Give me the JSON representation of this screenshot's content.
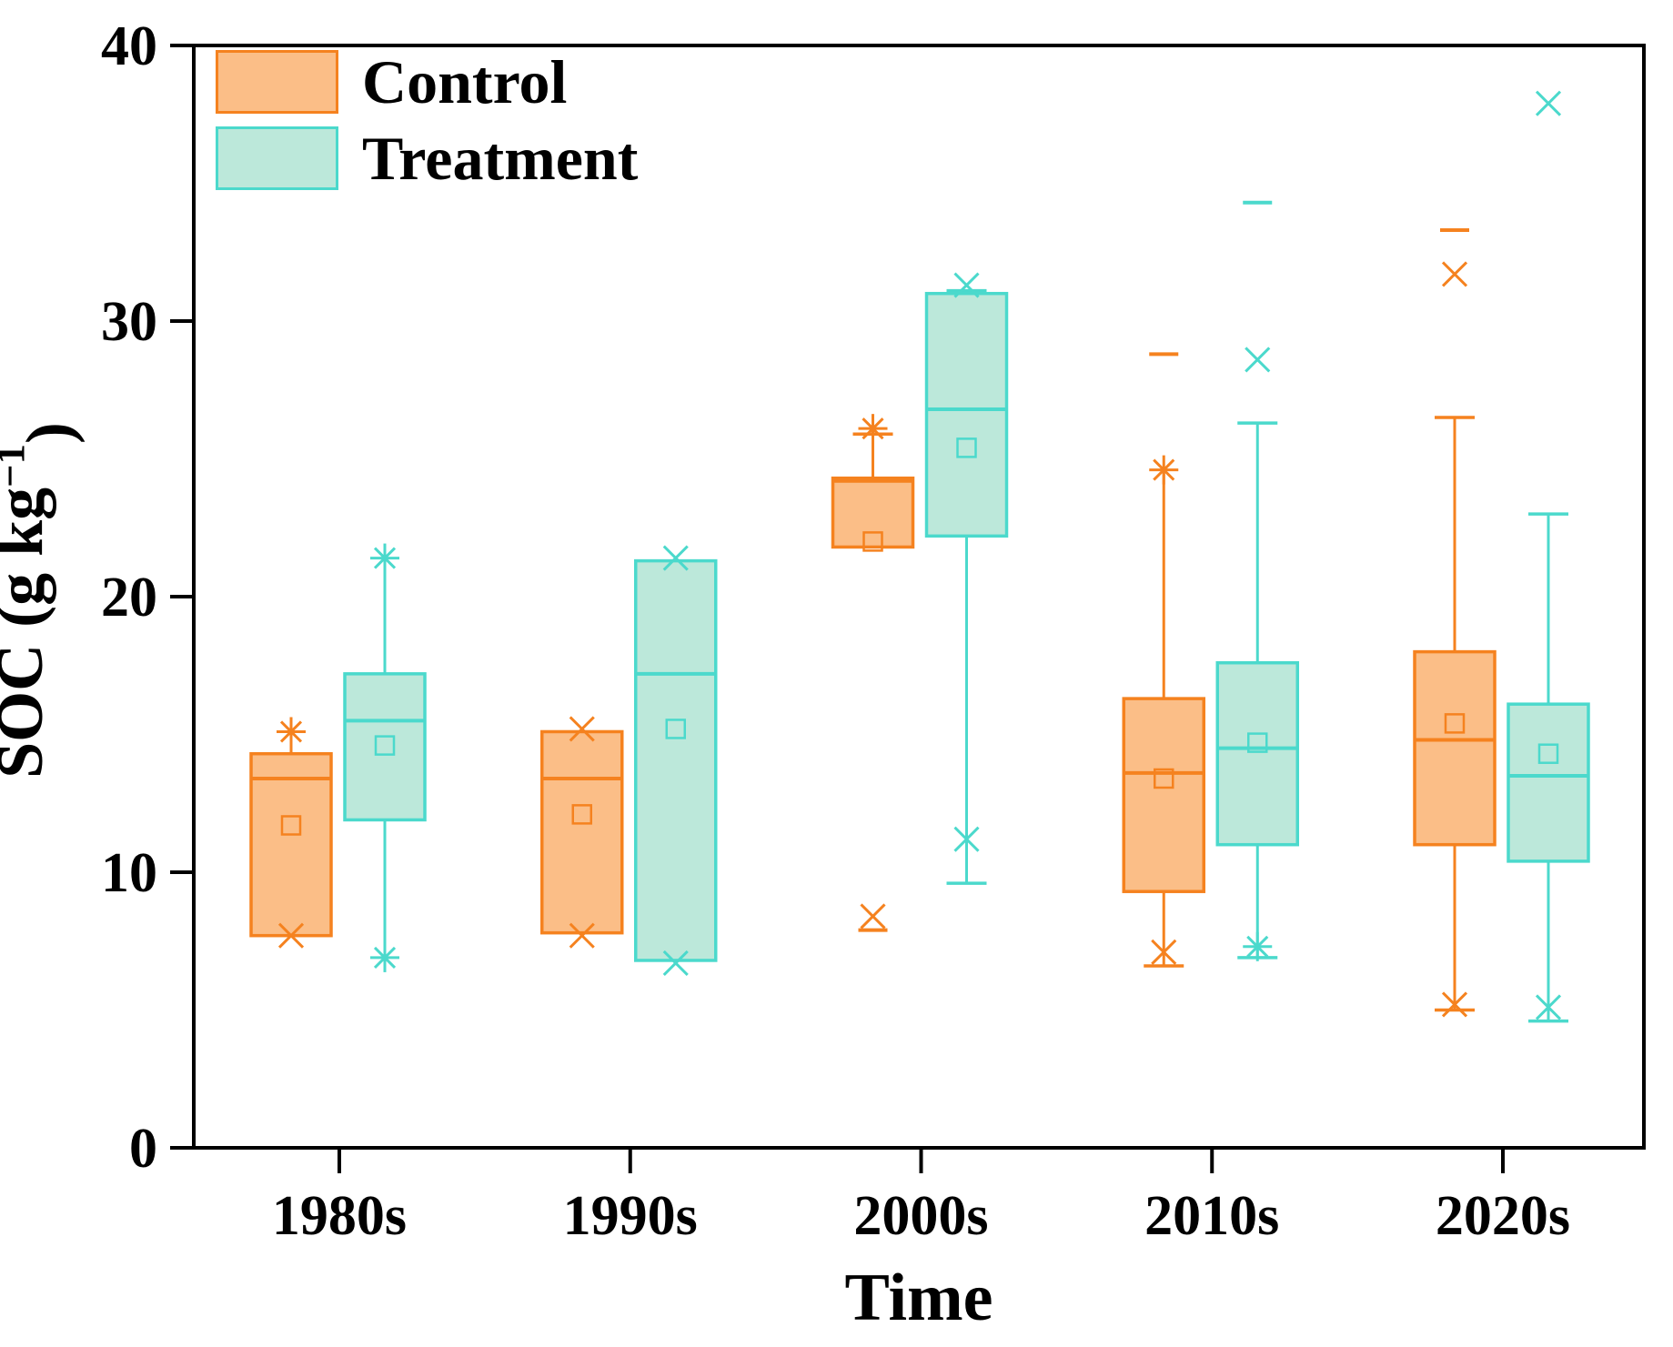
{
  "chart_data": {
    "type": "boxplot",
    "title": "",
    "xlabel": "Time",
    "ylabel": "SOC (g kg⁻¹)",
    "ylabel_parts": {
      "prefix": "SOC (g kg",
      "sup": "−1",
      "suffix": ")"
    },
    "ylim": [
      0,
      40
    ],
    "y_ticks": [
      0,
      10,
      20,
      30,
      40
    ],
    "categories": [
      "1980s",
      "1990s",
      "2000s",
      "2010s",
      "2020s"
    ],
    "legend": {
      "position": "top-left",
      "entries": [
        "Control",
        "Treatment"
      ]
    },
    "colors": {
      "control_line": "#F5821F",
      "control_fill": "#FBBE87",
      "treatment_line": "#4BD9CC",
      "treatment_fill": "#BCE8DA",
      "axis": "#000000",
      "background": "#FFFFFF"
    },
    "series": [
      {
        "name": "Control",
        "role": "control",
        "boxes": [
          {
            "category": "1980s",
            "q1": 7.7,
            "median": 13.4,
            "q3": 14.3,
            "mean": 11.7,
            "whisker_low": 7.7,
            "whisker_high": 15.0,
            "cap_low": false,
            "cap_high": false,
            "points": [
              {
                "shape": "star",
                "value": 15.1
              },
              {
                "shape": "x",
                "value": 7.7
              }
            ]
          },
          {
            "category": "1990s",
            "q1": 7.8,
            "median": 13.4,
            "q3": 15.1,
            "mean": 12.1,
            "whisker_low": 7.8,
            "whisker_high": 15.1,
            "cap_low": false,
            "cap_high": false,
            "points": [
              {
                "shape": "x",
                "value": 15.2
              },
              {
                "shape": "x",
                "value": 7.7
              }
            ]
          },
          {
            "category": "2000s",
            "q1": 21.8,
            "median": 24.2,
            "q3": 24.3,
            "mean": 22.0,
            "whisker_low": 21.8,
            "whisker_high": 25.9,
            "cap_low": false,
            "cap_high": true,
            "points": [
              {
                "shape": "star",
                "value": 26.1
              },
              {
                "shape": "x",
                "value": 8.4
              },
              {
                "shape": "dash",
                "value": 7.9
              }
            ]
          },
          {
            "category": "2010s",
            "q1": 9.3,
            "median": 13.6,
            "q3": 16.3,
            "mean": 13.4,
            "whisker_low": 6.6,
            "whisker_high": 24.5,
            "cap_low": true,
            "cap_high": false,
            "points": [
              {
                "shape": "star",
                "value": 24.6
              },
              {
                "shape": "x",
                "value": 7.1
              },
              {
                "shape": "dash",
                "value": 28.8
              }
            ]
          },
          {
            "category": "2020s",
            "q1": 11.0,
            "median": 14.8,
            "q3": 18.0,
            "mean": 15.4,
            "whisker_low": 5.0,
            "whisker_high": 26.5,
            "cap_low": true,
            "cap_high": true,
            "points": [
              {
                "shape": "x",
                "value": 5.2
              },
              {
                "shape": "x",
                "value": 31.7
              },
              {
                "shape": "dash",
                "value": 33.3
              }
            ]
          }
        ]
      },
      {
        "name": "Treatment",
        "role": "treatment",
        "boxes": [
          {
            "category": "1980s",
            "q1": 11.9,
            "median": 15.5,
            "q3": 17.2,
            "mean": 14.6,
            "whisker_low": 6.9,
            "whisker_high": 21.3,
            "cap_low": false,
            "cap_high": false,
            "points": [
              {
                "shape": "star",
                "value": 21.4
              },
              {
                "shape": "star",
                "value": 6.9
              }
            ]
          },
          {
            "category": "1990s",
            "q1": 6.8,
            "median": 17.2,
            "q3": 21.3,
            "mean": 15.2,
            "whisker_low": 6.8,
            "whisker_high": 21.3,
            "cap_low": false,
            "cap_high": false,
            "points": [
              {
                "shape": "x",
                "value": 21.4
              },
              {
                "shape": "x",
                "value": 6.7
              }
            ]
          },
          {
            "category": "2000s",
            "q1": 22.2,
            "median": 26.8,
            "q3": 31.0,
            "mean": 25.4,
            "whisker_low": 9.6,
            "whisker_high": 31.1,
            "cap_low": true,
            "cap_high": true,
            "points": [
              {
                "shape": "x",
                "value": 31.3
              },
              {
                "shape": "x",
                "value": 11.2
              }
            ]
          },
          {
            "category": "2010s",
            "q1": 11.0,
            "median": 14.5,
            "q3": 17.6,
            "mean": 14.7,
            "whisker_low": 6.9,
            "whisker_high": 26.3,
            "cap_low": true,
            "cap_high": true,
            "points": [
              {
                "shape": "x",
                "value": 28.6
              },
              {
                "shape": "dash",
                "value": 34.3
              },
              {
                "shape": "star",
                "value": 7.3
              }
            ]
          },
          {
            "category": "2020s",
            "q1": 10.4,
            "median": 13.5,
            "q3": 16.1,
            "mean": 14.3,
            "whisker_low": 4.6,
            "whisker_high": 23.0,
            "cap_low": true,
            "cap_high": true,
            "points": [
              {
                "shape": "x",
                "value": 37.9
              },
              {
                "shape": "x",
                "value": 5.1
              }
            ]
          }
        ]
      }
    ]
  }
}
